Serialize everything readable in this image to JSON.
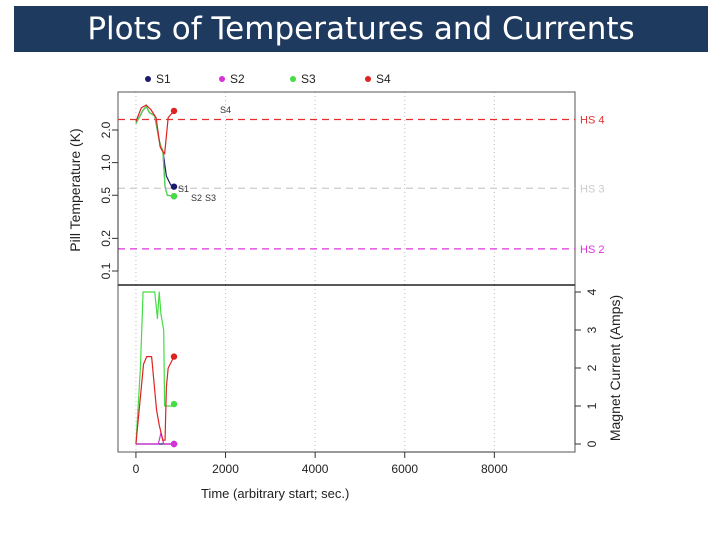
{
  "slide": {
    "title": "Plots of Temperatures and Currents"
  },
  "chart_data": [
    {
      "type": "line",
      "panel": "top",
      "ylabel": "Pill Temperature (K)",
      "yscale": "log",
      "yticks": [
        "0.1",
        "0.2",
        "0.5",
        "1.0",
        "2.0"
      ],
      "ylim": [
        0.07,
        4.2
      ],
      "xlim": [
        -400,
        9800
      ],
      "grid": "vertical dotted",
      "legend_position": "top",
      "legend": [
        {
          "name": "S1",
          "color": "#1a1a6e"
        },
        {
          "name": "S2",
          "color": "#d633d6"
        },
        {
          "name": "S3",
          "color": "#44dd44"
        },
        {
          "name": "S4",
          "color": "#dd2222"
        }
      ],
      "thresholds": [
        {
          "label": "HS 4",
          "value": 2.5,
          "color": "#e03030"
        },
        {
          "label": "HS 3",
          "value": 0.58,
          "color": "#cccccc"
        },
        {
          "label": "HS 2",
          "value": 0.16,
          "color": "#dd33dd"
        }
      ],
      "series": [
        {
          "name": "S1",
          "color": "#1a1a6e",
          "label": "S1",
          "x": [
            0,
            150,
            230,
            300,
            420,
            520,
            560,
            600,
            680,
            780,
            850
          ],
          "y": [
            2.3,
            3.0,
            3.3,
            2.9,
            2.7,
            1.6,
            1.4,
            1.3,
            0.75,
            0.62,
            0.6
          ]
        },
        {
          "name": "S2",
          "color": "#d633d6",
          "label": "S2",
          "x": [
            0,
            150,
            230,
            300,
            420,
            520,
            560,
            600,
            650,
            700,
            850
          ],
          "y": [
            2.3,
            3.0,
            3.3,
            2.9,
            2.7,
            1.6,
            1.4,
            1.3,
            0.6,
            0.5,
            0.49
          ]
        },
        {
          "name": "S3",
          "color": "#44dd44",
          "label": "S3",
          "x": [
            0,
            150,
            230,
            300,
            420,
            520,
            560,
            600,
            650,
            700,
            850
          ],
          "y": [
            2.3,
            3.0,
            3.3,
            2.9,
            2.7,
            1.6,
            1.4,
            1.3,
            0.6,
            0.5,
            0.49
          ]
        },
        {
          "name": "S4",
          "color": "#dd2222",
          "label": "S4",
          "x": [
            0,
            120,
            230,
            330,
            450,
            540,
            580,
            640,
            720,
            850
          ],
          "y": [
            2.4,
            3.2,
            3.4,
            3.1,
            2.6,
            1.4,
            1.3,
            1.2,
            2.6,
            3.0
          ]
        }
      ]
    },
    {
      "type": "line",
      "panel": "bottom",
      "ylabel": "Magnet Current (Amps)",
      "xlabel": "Time (arbitrary start; sec.)",
      "yticks": [
        "0",
        "1",
        "2",
        "3",
        "4"
      ],
      "xticks": [
        "0",
        "2000",
        "4000",
        "6000",
        "8000"
      ],
      "ylim": [
        0,
        4
      ],
      "xlim": [
        -400,
        9800
      ],
      "grid": "vertical dotted",
      "series": [
        {
          "name": "S1",
          "color": "#1a1a6e",
          "x": [
            0,
            850
          ],
          "y": [
            0,
            0
          ]
        },
        {
          "name": "S2",
          "color": "#d633d6",
          "x": [
            0,
            400,
            500,
            560,
            620,
            680,
            850
          ],
          "y": [
            0,
            0,
            0,
            0.3,
            0,
            0,
            0
          ]
        },
        {
          "name": "S3",
          "color": "#44dd44",
          "x": [
            0,
            100,
            160,
            420,
            480,
            520,
            560,
            620,
            640,
            820,
            850
          ],
          "y": [
            0,
            2.0,
            4.0,
            4.0,
            3.3,
            4.0,
            3.4,
            3.0,
            1.0,
            1.0,
            1.05
          ]
        },
        {
          "name": "S4",
          "color": "#dd2222",
          "x": [
            0,
            170,
            240,
            350,
            460,
            520,
            600,
            650,
            680,
            720,
            850
          ],
          "y": [
            0,
            2.1,
            2.3,
            2.3,
            0.9,
            0.5,
            0.1,
            0.1,
            1.5,
            2.0,
            2.3
          ]
        }
      ]
    }
  ]
}
